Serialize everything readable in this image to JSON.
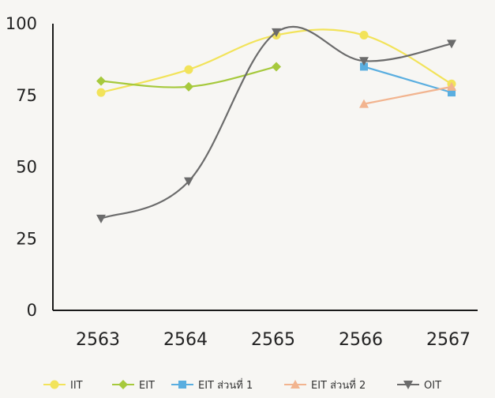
{
  "chart_data": {
    "type": "line",
    "x": [
      "2563",
      "2564",
      "2565",
      "2566",
      "2567"
    ],
    "ylim": [
      0,
      100
    ],
    "yticks": [
      "0",
      "25",
      "50",
      "75",
      "100"
    ],
    "grid": false,
    "legend_position": "bottom",
    "series": [
      {
        "name": "IIT",
        "color": "#f2e35a",
        "marker": "circle",
        "values": [
          76,
          84,
          96,
          96,
          79
        ]
      },
      {
        "name": "EIT",
        "color": "#a6c93c",
        "marker": "diamond",
        "values": [
          80,
          78,
          85,
          null,
          null
        ]
      },
      {
        "name": "EIT ส่วนที่ 1",
        "color": "#5aaee0",
        "marker": "square",
        "values": [
          null,
          null,
          null,
          85,
          76
        ]
      },
      {
        "name": "EIT ส่วนที่ 2",
        "color": "#f2b48f",
        "marker": "triangle-up",
        "values": [
          null,
          null,
          null,
          72,
          78
        ]
      },
      {
        "name": "OIT",
        "color": "#6b6b6b",
        "marker": "triangle-down",
        "values": [
          32,
          45,
          97,
          87,
          93
        ]
      }
    ]
  }
}
